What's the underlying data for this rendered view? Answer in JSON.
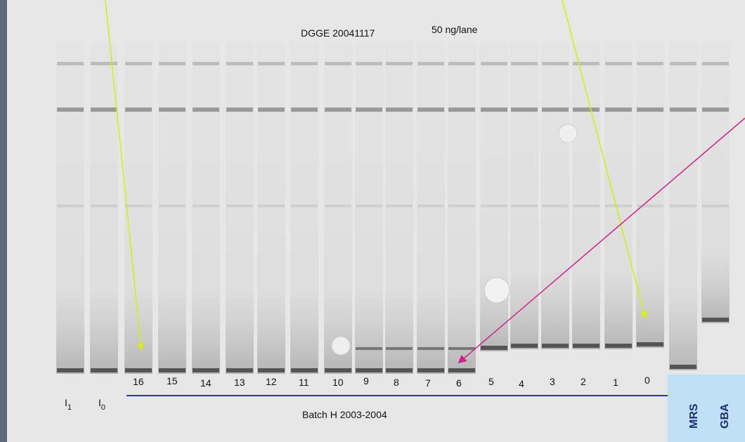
{
  "header": {
    "title": "DGGE 20041117",
    "loading": "50 ng/lane"
  },
  "lanes": [
    {
      "base": "I",
      "sub": "1"
    },
    {
      "base": "I",
      "sub": "0"
    },
    {
      "base": "16"
    },
    {
      "base": "15"
    },
    {
      "base": "14"
    },
    {
      "base": "13"
    },
    {
      "base": "12"
    },
    {
      "base": "11"
    },
    {
      "base": "10"
    },
    {
      "base": "9"
    },
    {
      "base": "8"
    },
    {
      "base": "7"
    },
    {
      "base": "6"
    },
    {
      "base": "5"
    },
    {
      "base": "4"
    },
    {
      "base": "3"
    },
    {
      "base": "2"
    },
    {
      "base": "1"
    },
    {
      "base": "0"
    }
  ],
  "batch": "Batch H 2003-2004",
  "references": [
    "MRS",
    "GBA"
  ]
}
